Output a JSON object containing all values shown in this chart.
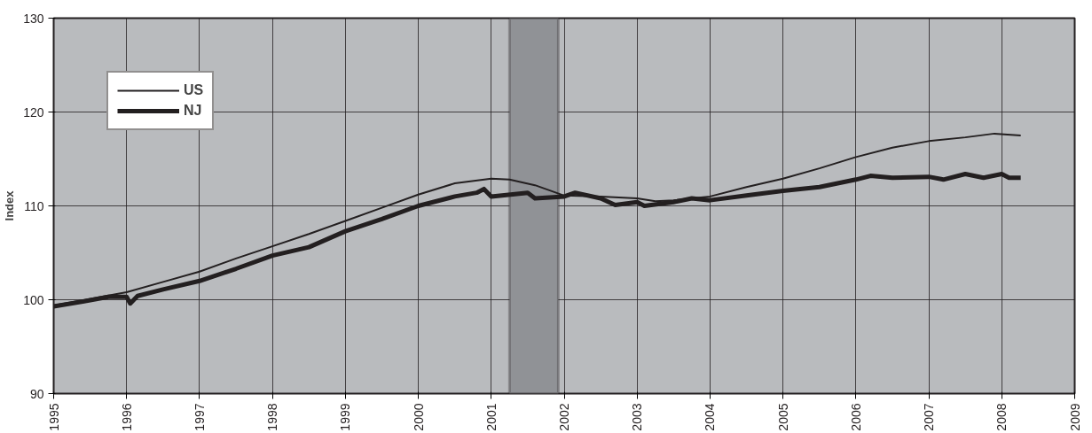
{
  "chart_data": {
    "type": "line",
    "ylabel": "Index",
    "xlim": [
      1995,
      2009
    ],
    "xticks": [
      1995,
      1996,
      1997,
      1998,
      1999,
      2000,
      2001,
      2002,
      2003,
      2004,
      2005,
      2006,
      2007,
      2008,
      2009
    ],
    "ylim": [
      90,
      130
    ],
    "yticks": [
      90,
      100,
      110,
      120,
      130
    ],
    "grid": true,
    "legend": "top left",
    "bands": [
      {
        "axis": "x",
        "from": 2001.25,
        "to": 2001.92,
        "color": "#909296"
      }
    ],
    "series": [
      {
        "name": "US",
        "color": "#231f20",
        "x": [
          1995,
          1995.5,
          1996,
          1996.5,
          1997,
          1997.5,
          1998,
          1998.5,
          1999,
          1999.5,
          2000,
          2000.5,
          2001,
          2001.25,
          2001.6,
          2002,
          2002.5,
          2003,
          2003.25,
          2003.5,
          2004,
          2004.5,
          2005,
          2005.5,
          2006,
          2006.5,
          2007,
          2007.5,
          2007.9,
          2008.26
        ],
        "values": [
          99.4,
          100.1,
          100.8,
          101.9,
          103.0,
          104.4,
          105.7,
          107.0,
          108.4,
          109.8,
          111.2,
          112.4,
          112.9,
          112.8,
          112.2,
          111.1,
          111.0,
          110.8,
          110.5,
          110.6,
          111.0,
          112.0,
          112.9,
          114.0,
          115.2,
          116.2,
          116.9,
          117.3,
          117.7,
          117.5
        ]
      },
      {
        "name": "NJ",
        "color": "#231f20",
        "x": [
          1995,
          1995.4,
          1995.75,
          1996,
          1996.05,
          1996.15,
          1996.5,
          1997,
          1997.5,
          1998,
          1998.5,
          1999,
          1999.5,
          2000,
          2000.5,
          2000.8,
          2000.9,
          2001,
          2001.5,
          2001.6,
          2002,
          2002.15,
          2002.5,
          2002.7,
          2003,
          2003.1,
          2003.5,
          2003.75,
          2004,
          2004.5,
          2005,
          2005.5,
          2005.75,
          2006,
          2006.2,
          2006.5,
          2007,
          2007.2,
          2007.5,
          2007.75,
          2008,
          2008.1,
          2008.26
        ],
        "values": [
          99.3,
          99.8,
          100.3,
          100.3,
          99.6,
          100.4,
          101.1,
          102.0,
          103.3,
          104.7,
          105.6,
          107.3,
          108.6,
          110.0,
          111.0,
          111.4,
          111.8,
          111.0,
          111.4,
          110.8,
          111.0,
          111.4,
          110.8,
          110.1,
          110.4,
          110.0,
          110.4,
          110.8,
          110.6,
          111.1,
          111.6,
          112.0,
          112.4,
          112.8,
          113.2,
          113.0,
          113.1,
          112.8,
          113.4,
          113.0,
          113.4,
          113.0,
          113.0
        ]
      }
    ]
  }
}
